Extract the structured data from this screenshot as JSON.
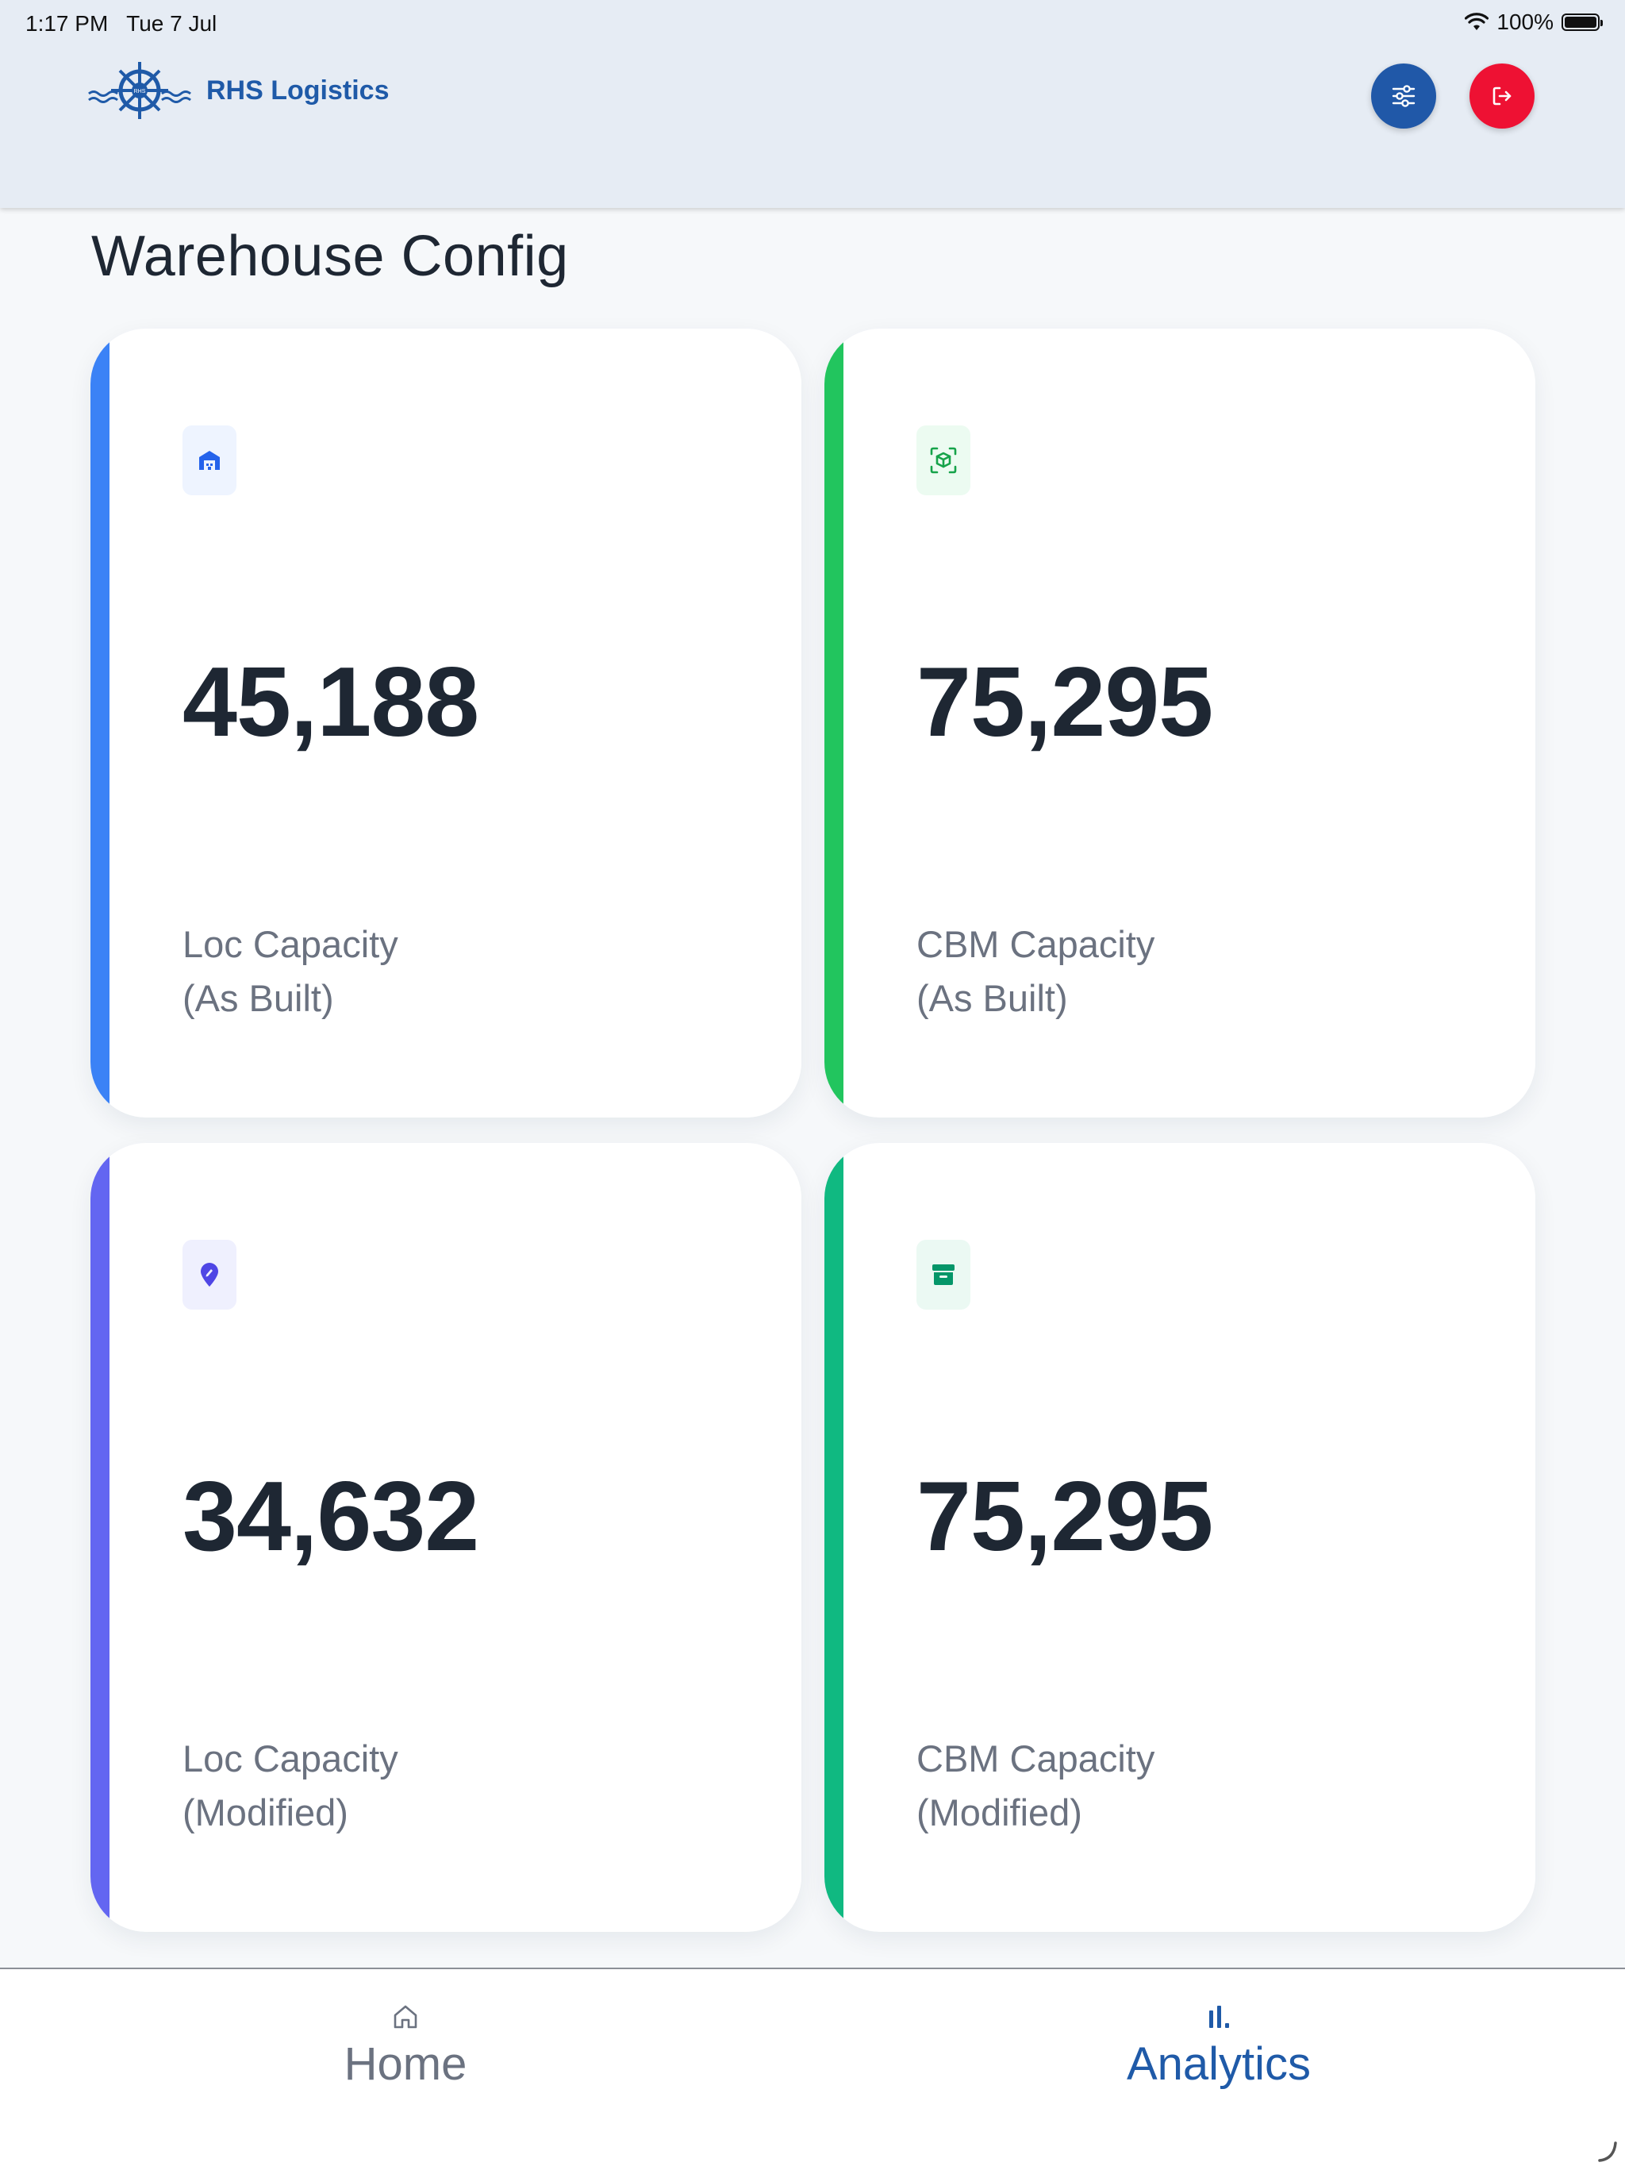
{
  "status_bar": {
    "time": "1:17 PM",
    "date": "Tue 7 Jul",
    "battery": "100%",
    "wifi_icon": "wifi-icon",
    "battery_icon": "battery-icon"
  },
  "header": {
    "brand_name": "RHS Logistics",
    "logo_text": "RHS",
    "filter_icon": "sliders-icon",
    "logout_icon": "logout-icon",
    "colors": {
      "filter": "#2058a8",
      "logout": "#ee1133",
      "brand": "#1f5aa8"
    }
  },
  "page": {
    "title": "Warehouse Config"
  },
  "cards": [
    {
      "value": "45,188",
      "label_line1": "Loc Capacity",
      "label_line2": "(As Built)",
      "icon": "warehouse-icon",
      "accent": "#3b82f6"
    },
    {
      "value": "75,295",
      "label_line1": "CBM Capacity",
      "label_line2": "(As Built)",
      "icon": "cube-scan-icon",
      "accent": "#22c55e"
    },
    {
      "value": "34,632",
      "label_line1": "Loc Capacity",
      "label_line2": "(Modified)",
      "icon": "location-edit-icon",
      "accent": "#6366f1"
    },
    {
      "value": "75,295",
      "label_line1": "CBM Capacity",
      "label_line2": "(Modified)",
      "icon": "archive-icon",
      "accent": "#10b981"
    }
  ],
  "bottom_nav": {
    "items": [
      {
        "label": "Home",
        "icon": "home-icon",
        "active": false
      },
      {
        "label": "Analytics",
        "icon": "bar-chart-icon",
        "active": true
      }
    ]
  }
}
